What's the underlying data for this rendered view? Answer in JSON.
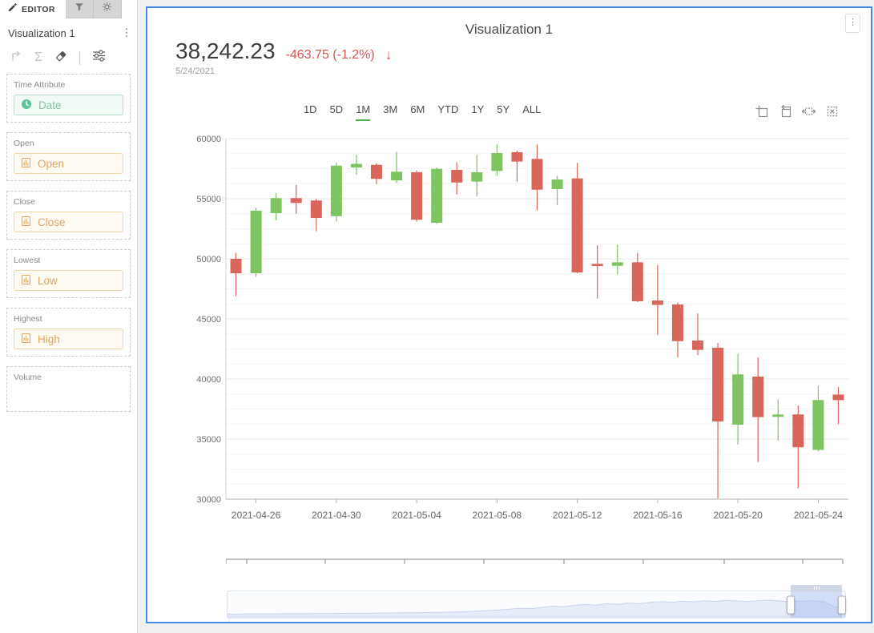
{
  "editor_panel": {
    "tab_label": "EDITOR",
    "viz_name": "Visualization 1",
    "icons": [
      "pencil-icon",
      "filter-icon",
      "gear-icon",
      "corner-arrow-icon",
      "sigma-icon",
      "eraser-icon",
      "sliders-icon",
      "kebab-icon"
    ],
    "wells": [
      {
        "label": "Time Attribute",
        "pill": "Date",
        "type": "time",
        "icon": "clock-icon"
      },
      {
        "label": "Open",
        "pill": "Open",
        "type": "measure",
        "icon": "measure-icon"
      },
      {
        "label": "Close",
        "pill": "Close",
        "type": "measure",
        "icon": "measure-icon"
      },
      {
        "label": "Lowest",
        "pill": "Low",
        "type": "measure",
        "icon": "measure-icon"
      },
      {
        "label": "Highest",
        "pill": "High",
        "type": "measure",
        "icon": "measure-icon"
      },
      {
        "label": "Volume",
        "pill": null
      }
    ]
  },
  "chart_panel": {
    "title": "Visualization 1",
    "price": "38,242.23",
    "change": "-463.75 (-1.2%)",
    "arrow": "↓",
    "date": "5/24/2021",
    "ranges": [
      "1D",
      "5D",
      "1M",
      "3M",
      "6M",
      "YTD",
      "1Y",
      "5Y",
      "ALL"
    ],
    "active_range": "1M",
    "toolbox_icons": [
      "box-zoom-icon",
      "zoom-back-icon",
      "pan-horizontal-icon",
      "clear-selection-icon"
    ],
    "kebab": "⋮"
  },
  "chart_data": {
    "type": "candlestick",
    "title": "Visualization 1",
    "ylabel": "",
    "xlabel": "",
    "ylim": [
      30000,
      60000
    ],
    "yticks": [
      30000,
      35000,
      40000,
      45000,
      50000,
      55000,
      60000
    ],
    "grid": true,
    "colors": {
      "up": "#7EC561",
      "down": "#D9655B",
      "accent_green": "#4caf50",
      "change_red": "#d9534f",
      "panel_border": "#3f8ceb"
    },
    "xtick_labels": [
      {
        "index": 1,
        "label": "2021-04-26"
      },
      {
        "index": 5,
        "label": "2021-04-30"
      },
      {
        "index": 9,
        "label": "2021-05-04"
      },
      {
        "index": 13,
        "label": "2021-05-08"
      },
      {
        "index": 17,
        "label": "2021-05-12"
      },
      {
        "index": 21,
        "label": "2021-05-16"
      },
      {
        "index": 25,
        "label": "2021-05-20"
      },
      {
        "index": 29,
        "label": "2021-05-24"
      }
    ],
    "candles_format": [
      "date",
      "open",
      "high",
      "low",
      "close"
    ],
    "candles": [
      [
        "2021-04-25",
        50000,
        50500,
        46900,
        48800
      ],
      [
        "2021-04-26",
        48800,
        54250,
        48500,
        54000
      ],
      [
        "2021-04-27",
        53800,
        55470,
        53200,
        55050
      ],
      [
        "2021-04-28",
        55050,
        56150,
        53750,
        54650
      ],
      [
        "2021-04-29",
        54850,
        55000,
        52300,
        53400
      ],
      [
        "2021-04-30",
        53550,
        58000,
        53100,
        57750
      ],
      [
        "2021-05-01",
        57600,
        58650,
        57000,
        57900
      ],
      [
        "2021-05-02",
        57820,
        57950,
        56200,
        56650
      ],
      [
        "2021-05-03",
        56530,
        58900,
        56300,
        57250
      ],
      [
        "2021-05-04",
        57200,
        57350,
        53100,
        53250
      ],
      [
        "2021-05-05",
        53000,
        57600,
        52900,
        57480
      ],
      [
        "2021-05-06",
        57400,
        58050,
        55350,
        56350
      ],
      [
        "2021-05-07",
        56420,
        58650,
        55200,
        57200
      ],
      [
        "2021-05-08",
        57310,
        59530,
        56900,
        58800
      ],
      [
        "2021-05-09",
        58870,
        59000,
        56420,
        58090
      ],
      [
        "2021-05-10",
        58310,
        59500,
        54020,
        55750
      ],
      [
        "2021-05-11",
        55800,
        56910,
        54470,
        56600
      ],
      [
        "2021-05-12",
        56690,
        57980,
        48800,
        48870
      ],
      [
        "2021-05-13",
        49580,
        51130,
        46690,
        49400
      ],
      [
        "2021-05-14",
        49420,
        51200,
        48690,
        49710
      ],
      [
        "2021-05-15",
        49710,
        50490,
        46400,
        46470
      ],
      [
        "2021-05-16",
        46530,
        49490,
        43650,
        46160
      ],
      [
        "2021-05-17",
        46200,
        46380,
        41800,
        43150
      ],
      [
        "2021-05-18",
        43200,
        45450,
        41980,
        42420
      ],
      [
        "2021-05-19",
        42600,
        43000,
        30050,
        36470
      ],
      [
        "2021-05-20",
        36200,
        42090,
        34550,
        40380
      ],
      [
        "2021-05-21",
        40200,
        41800,
        33090,
        36830
      ],
      [
        "2021-05-22",
        36850,
        38310,
        34870,
        37050
      ],
      [
        "2021-05-23",
        37050,
        37800,
        30910,
        34320
      ],
      [
        "2021-05-24",
        34100,
        39420,
        33980,
        38250
      ],
      [
        "2021-05-25",
        38706,
        39350,
        36250,
        38242
      ]
    ],
    "navigator": {
      "values": [
        0.1,
        0.1,
        0.11,
        0.11,
        0.11,
        0.12,
        0.12,
        0.12,
        0.13,
        0.13,
        0.13,
        0.14,
        0.14,
        0.14,
        0.15,
        0.15,
        0.16,
        0.16,
        0.17,
        0.18,
        0.19,
        0.2,
        0.22,
        0.24,
        0.27,
        0.3,
        0.34,
        0.38,
        0.36,
        0.42,
        0.48,
        0.45,
        0.52,
        0.57,
        0.53,
        0.6,
        0.57,
        0.63,
        0.6,
        0.66,
        0.7,
        0.66,
        0.72,
        0.69,
        0.74,
        0.71,
        0.76,
        0.73,
        0.7,
        0.74,
        0.77,
        0.73,
        0.68,
        0.72,
        0.74,
        0.7,
        0.45,
        0.42
      ],
      "window": {
        "start_pct": 91.2,
        "end_pct": 99.5
      }
    }
  }
}
